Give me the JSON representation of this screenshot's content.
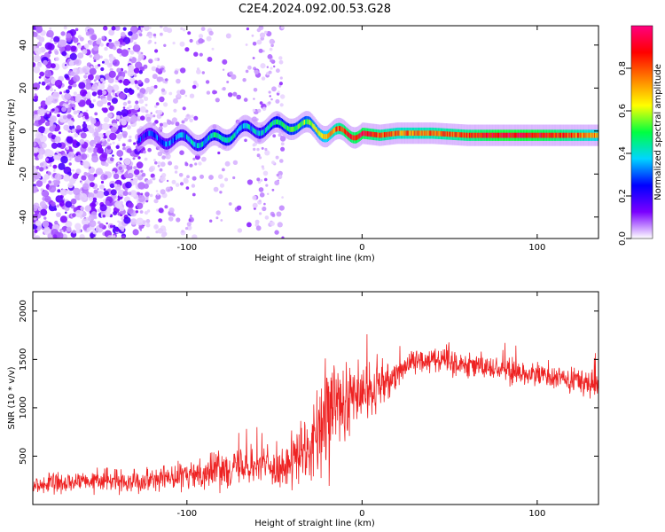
{
  "title": "C2E4.2024.092.00.53.G28",
  "chart_data": [
    {
      "type": "heatmap",
      "xlabel": "Height of straight line (km)",
      "ylabel": "Frequency (Hz)",
      "xlim": [
        -188,
        135
      ],
      "ylim": [
        -50,
        49
      ],
      "xticks": [
        -100,
        0,
        100
      ],
      "yticks": [
        -40,
        -20,
        0,
        20,
        40
      ],
      "colorbar": {
        "label": "Normalized spectral amplitude",
        "range": [
          0,
          1
        ],
        "ticks": [
          "0.0",
          "0.2",
          "0.4",
          "0.6",
          "0.8"
        ],
        "tick_values": [
          0,
          0.2,
          0.4,
          0.6,
          0.8
        ],
        "colors": [
          "#ffffff",
          "#7a00ff",
          "#0000ff",
          "#00d5ff",
          "#00ff40",
          "#ffff00",
          "#ff8000",
          "#ff0000",
          "#ff0080"
        ]
      },
      "ridge": {
        "x": [
          -125,
          -110,
          -100,
          -90,
          -80,
          -70,
          -60,
          -50,
          -40,
          -30,
          -20,
          -10,
          0,
          10,
          20,
          40,
          60,
          80,
          100,
          120,
          135
        ],
        "freq": [
          -3,
          -4,
          -4,
          -5,
          -3,
          0,
          1,
          2,
          3,
          2,
          -1,
          -1,
          -1,
          -2,
          -1,
          -1,
          -2,
          -2,
          -2,
          -2,
          -2
        ],
        "amplitude": [
          0.25,
          0.3,
          0.35,
          0.4,
          0.45,
          0.4,
          0.35,
          0.45,
          0.5,
          0.55,
          0.7,
          0.85,
          0.9,
          0.8,
          0.75,
          0.78,
          0.82,
          0.92,
          0.9,
          0.8,
          0.7
        ]
      }
    },
    {
      "type": "line",
      "xlabel": "Height of straight line (km)",
      "ylabel": "SNR (10 * v/v)",
      "xlim": [
        -188,
        135
      ],
      "ylim": [
        0,
        2200
      ],
      "xticks": [
        -100,
        0,
        100
      ],
      "yticks": [
        500,
        1000,
        1500,
        2000
      ],
      "series": [
        {
          "name": "SNR",
          "color": "#ee2222",
          "x": [
            -188,
            -160,
            -130,
            -100,
            -80,
            -60,
            -45,
            -30,
            -20,
            -10,
            0,
            10,
            20,
            30,
            40,
            60,
            80,
            100,
            120,
            135
          ],
          "mean": [
            200,
            230,
            250,
            290,
            380,
            420,
            370,
            560,
            850,
            1050,
            1150,
            1200,
            1380,
            1480,
            1520,
            1450,
            1400,
            1340,
            1270,
            1250
          ],
          "spread": [
            110,
            120,
            130,
            160,
            220,
            230,
            200,
            420,
            720,
            520,
            320,
            300,
            160,
            160,
            150,
            150,
            150,
            150,
            160,
            160
          ]
        }
      ]
    }
  ]
}
